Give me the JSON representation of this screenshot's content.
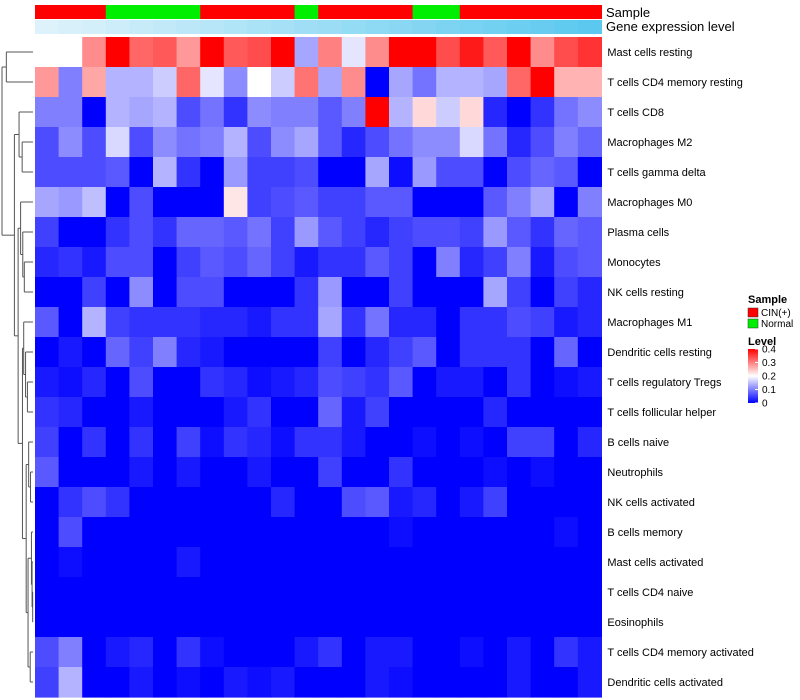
{
  "chart_data": {
    "type": "heatmap",
    "title": "",
    "rows": [
      "Mast cells resting",
      "T cells CD4 memory resting",
      "T cells CD8",
      "Macrophages M2",
      "T cells gamma delta",
      "Macrophages M0",
      "Plasma cells",
      "Monocytes",
      "NK cells resting",
      "Macrophages M1",
      "Dendritic cells resting",
      "T cells regulatory  Tregs",
      "T cells follicular helper",
      "B cells naive",
      "Neutrophils",
      "NK cells activated",
      "B cells memory",
      "Mast cells activated",
      "T cells CD4 naive",
      "Eosinophils",
      "T cells CD4 memory activated",
      "Dendritic cells activated"
    ],
    "column_annotations": [
      {
        "name": "Sample",
        "values": [
          "CIN(+)",
          "CIN(+)",
          "CIN(+)",
          "Normal",
          "Normal",
          "Normal",
          "Normal",
          "CIN(+)",
          "CIN(+)",
          "CIN(+)",
          "CIN(+)",
          "Normal",
          "CIN(+)",
          "CIN(+)",
          "CIN(+)",
          "CIN(+)",
          "Normal",
          "Normal",
          "CIN(+)",
          "CIN(+)",
          "CIN(+)",
          "CIN(+)",
          "CIN(+)",
          "CIN(+)"
        ]
      },
      {
        "name": "Gene expression level",
        "values": [
          0.02,
          0.06,
          0.1,
          0.14,
          0.18,
          0.22,
          0.26,
          0.3,
          0.34,
          0.38,
          0.42,
          0.46,
          0.5,
          0.54,
          0.58,
          0.62,
          0.66,
          0.7,
          0.74,
          0.78,
          0.82,
          0.86,
          0.9,
          0.94
        ]
      }
    ],
    "values": [
      [
        0.2,
        0.2,
        0.29,
        0.4,
        0.32,
        0.33,
        0.28,
        0.4,
        0.33,
        0.34,
        0.4,
        0.13,
        0.3,
        0.18,
        0.29,
        0.4,
        0.4,
        0.34,
        0.38,
        0.33,
        0.4,
        0.29,
        0.34,
        0.36
      ],
      [
        0.28,
        0.1,
        0.27,
        0.14,
        0.14,
        0.16,
        0.32,
        0.18,
        0.11,
        0.2,
        0.16,
        0.31,
        0.13,
        0.29,
        0.0,
        0.13,
        0.09,
        0.14,
        0.14,
        0.13,
        0.32,
        0.4,
        0.26,
        0.26
      ],
      [
        0.1,
        0.1,
        0.0,
        0.14,
        0.13,
        0.14,
        0.06,
        0.09,
        0.04,
        0.11,
        0.1,
        0.1,
        0.07,
        0.1,
        0.4,
        0.14,
        0.23,
        0.16,
        0.23,
        0.03,
        0.0,
        0.04,
        0.09,
        0.11
      ],
      [
        0.06,
        0.11,
        0.06,
        0.17,
        0.06,
        0.11,
        0.09,
        0.1,
        0.14,
        0.06,
        0.11,
        0.13,
        0.07,
        0.03,
        0.06,
        0.09,
        0.11,
        0.11,
        0.17,
        0.09,
        0.03,
        0.06,
        0.1,
        0.08
      ],
      [
        0.06,
        0.06,
        0.06,
        0.07,
        0.0,
        0.14,
        0.04,
        0.0,
        0.12,
        0.05,
        0.05,
        0.06,
        0.0,
        0.0,
        0.13,
        0.01,
        0.12,
        0.06,
        0.06,
        0.0,
        0.06,
        0.08,
        0.07,
        0.0
      ],
      [
        0.13,
        0.12,
        0.15,
        0.0,
        0.06,
        0.0,
        0.0,
        0.0,
        0.22,
        0.05,
        0.06,
        0.07,
        0.05,
        0.05,
        0.07,
        0.07,
        0.0,
        0.0,
        0.0,
        0.07,
        0.1,
        0.13,
        0.0,
        0.1
      ],
      [
        0.05,
        0.0,
        0.0,
        0.04,
        0.06,
        0.04,
        0.08,
        0.08,
        0.07,
        0.09,
        0.05,
        0.12,
        0.07,
        0.05,
        0.03,
        0.05,
        0.06,
        0.06,
        0.05,
        0.12,
        0.07,
        0.04,
        0.08,
        0.07
      ],
      [
        0.03,
        0.04,
        0.02,
        0.06,
        0.06,
        0.0,
        0.05,
        0.07,
        0.06,
        0.08,
        0.05,
        0.02,
        0.04,
        0.04,
        0.07,
        0.05,
        0.0,
        0.1,
        0.03,
        0.05,
        0.1,
        0.02,
        0.06,
        0.07
      ],
      [
        0.0,
        0.0,
        0.05,
        0.0,
        0.11,
        0.0,
        0.06,
        0.06,
        0.0,
        0.0,
        0.0,
        0.04,
        0.12,
        0.0,
        0.0,
        0.05,
        0.0,
        0.0,
        0.0,
        0.13,
        0.05,
        0.0,
        0.05,
        0.03
      ],
      [
        0.07,
        0.0,
        0.14,
        0.05,
        0.04,
        0.04,
        0.04,
        0.03,
        0.03,
        0.02,
        0.04,
        0.04,
        0.13,
        0.04,
        0.09,
        0.03,
        0.03,
        0.0,
        0.04,
        0.04,
        0.06,
        0.05,
        0.02,
        0.03
      ],
      [
        0.0,
        0.02,
        0.0,
        0.08,
        0.05,
        0.1,
        0.03,
        0.02,
        0.0,
        0.0,
        0.0,
        0.0,
        0.05,
        0.0,
        0.03,
        0.05,
        0.07,
        0.0,
        0.04,
        0.04,
        0.04,
        0.0,
        0.08,
        0.0
      ],
      [
        0.02,
        0.01,
        0.03,
        0.0,
        0.06,
        0.0,
        0.0,
        0.04,
        0.03,
        0.01,
        0.02,
        0.03,
        0.06,
        0.05,
        0.04,
        0.07,
        0.0,
        0.02,
        0.02,
        0.0,
        0.04,
        0.0,
        0.01,
        0.02
      ],
      [
        0.04,
        0.03,
        0.0,
        0.0,
        0.02,
        0.0,
        0.0,
        0.0,
        0.02,
        0.04,
        0.0,
        0.0,
        0.08,
        0.02,
        0.05,
        0.0,
        0.0,
        0.0,
        0.0,
        0.03,
        0.0,
        0.0,
        0.0,
        0.0
      ],
      [
        0.05,
        0.0,
        0.04,
        0.0,
        0.04,
        0.0,
        0.05,
        0.01,
        0.04,
        0.03,
        0.01,
        0.04,
        0.04,
        0.02,
        0.0,
        0.0,
        0.01,
        0.0,
        0.01,
        0.0,
        0.05,
        0.05,
        0.0,
        0.03
      ],
      [
        0.07,
        0.0,
        0.0,
        0.0,
        0.02,
        0.0,
        0.02,
        0.0,
        0.0,
        0.02,
        0.0,
        0.0,
        0.05,
        0.0,
        0.0,
        0.04,
        0.0,
        0.0,
        0.0,
        0.01,
        0.0,
        0.01,
        0.0,
        0.0
      ],
      [
        0.0,
        0.04,
        0.06,
        0.04,
        0.0,
        0.0,
        0.0,
        0.0,
        0.0,
        0.0,
        0.03,
        0.0,
        0.0,
        0.06,
        0.07,
        0.02,
        0.03,
        0.0,
        0.02,
        0.05,
        0.0,
        0.0,
        0.0,
        0.0
      ],
      [
        0.0,
        0.06,
        0.0,
        0.0,
        0.0,
        0.0,
        0.0,
        0.0,
        0.0,
        0.0,
        0.0,
        0.0,
        0.0,
        0.0,
        0.0,
        0.01,
        0.0,
        0.0,
        0.0,
        0.0,
        0.0,
        0.0,
        0.01,
        0.0
      ],
      [
        0.0,
        0.01,
        0.0,
        0.0,
        0.0,
        0.0,
        0.02,
        0.0,
        0.0,
        0.0,
        0.0,
        0.0,
        0.0,
        0.0,
        0.0,
        0.0,
        0.0,
        0.0,
        0.0,
        0.0,
        0.0,
        0.0,
        0.0,
        0.0
      ],
      [
        0.0,
        0.0,
        0.0,
        0.0,
        0.0,
        0.0,
        0.0,
        0.0,
        0.0,
        0.0,
        0.0,
        0.0,
        0.0,
        0.0,
        0.0,
        0.0,
        0.0,
        0.0,
        0.0,
        0.0,
        0.0,
        0.0,
        0.0,
        0.0
      ],
      [
        0.0,
        0.0,
        0.0,
        0.0,
        0.0,
        0.0,
        0.0,
        0.0,
        0.0,
        0.0,
        0.0,
        0.0,
        0.0,
        0.0,
        0.0,
        0.0,
        0.0,
        0.0,
        0.0,
        0.0,
        0.0,
        0.0,
        0.0,
        0.0
      ],
      [
        0.06,
        0.1,
        0.0,
        0.02,
        0.03,
        0.0,
        0.04,
        0.01,
        0.0,
        0.0,
        0.0,
        0.02,
        0.04,
        0.0,
        0.02,
        0.02,
        0.0,
        0.0,
        0.01,
        0.0,
        0.02,
        0.0,
        0.04,
        0.02
      ],
      [
        0.05,
        0.14,
        0.0,
        0.0,
        0.02,
        0.0,
        0.01,
        0.0,
        0.02,
        0.01,
        0.02,
        0.0,
        0.0,
        0.0,
        0.02,
        0.01,
        0.0,
        0.0,
        0.0,
        0.0,
        0.02,
        0.0,
        0.0,
        0.02
      ]
    ],
    "row_dendrogram": true
  },
  "legend": {
    "sample_title": "Sample",
    "sample_items": [
      {
        "label": "CIN(+)",
        "color": "#ff0000"
      },
      {
        "label": "Normal",
        "color": "#00ee00"
      }
    ],
    "level_title": "Level",
    "level_ticks": [
      "0.4",
      "0.3",
      "0.2",
      "0.1",
      "0"
    ],
    "level_range": [
      0,
      0.4
    ]
  },
  "colors": {
    "low": "#0000ff",
    "mid": "#ffffff",
    "high": "#ff0000",
    "gene_expression_light": "#e0f3fb",
    "gene_expression_dark": "#53c6ee"
  }
}
